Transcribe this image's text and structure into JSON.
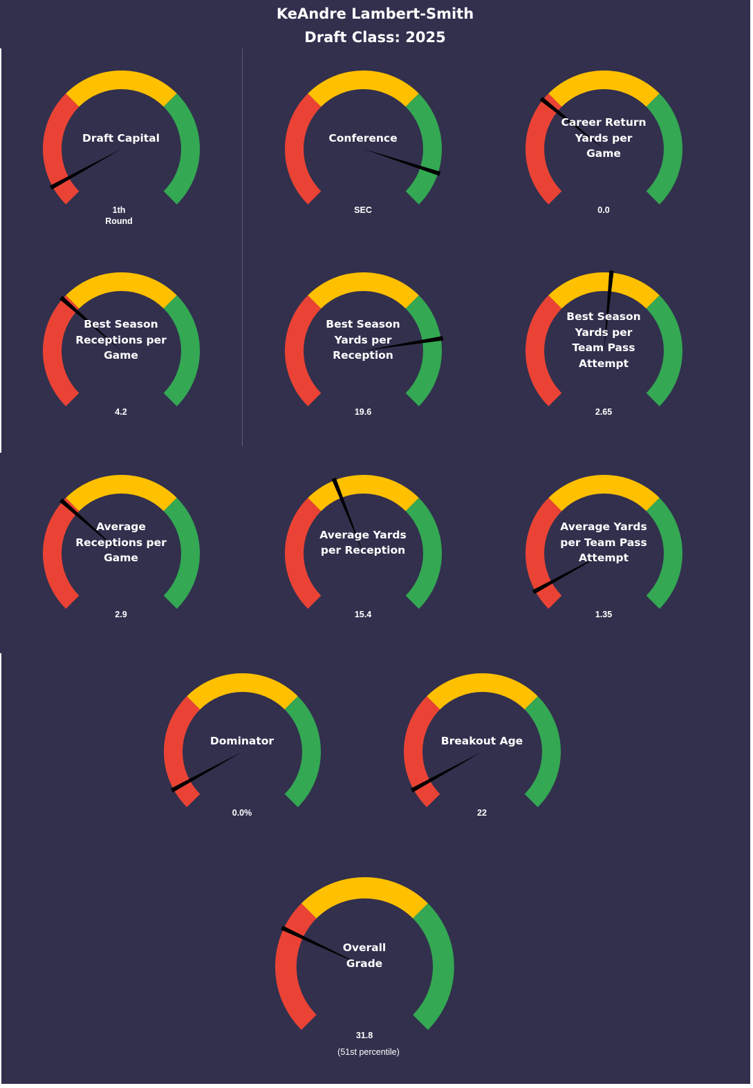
{
  "header": {
    "player_name": "KeAndre Lambert-Smith",
    "draft_class": "Draft Class: 2025"
  },
  "colors": {
    "background": "#32304d",
    "low": "#ea4335",
    "mid": "#ffc000",
    "high": "#34a853",
    "needle": "#000000",
    "text": "#ffffff"
  },
  "chart_data": [
    {
      "type": "gauge",
      "name": "draft-capital",
      "label_lines": [
        "Draft Capital"
      ],
      "value_lines": [
        "1th",
        "Round"
      ],
      "needle_pct": 6
    },
    {
      "type": "gauge",
      "name": "conference",
      "label_lines": [
        "Conference"
      ],
      "value_lines": [
        "SEC"
      ],
      "needle_pct": 90
    },
    {
      "type": "gauge",
      "name": "career-return-yards",
      "label_lines": [
        "Career Return",
        "Yards per",
        "Game"
      ],
      "value_lines": [
        "0.0"
      ],
      "needle_pct": 31
    },
    {
      "type": "gauge",
      "name": "best-season-receptions",
      "label_lines": [
        "Best Season",
        "Receptions per",
        "Game"
      ],
      "value_lines": [
        "4.2"
      ],
      "needle_pct": 32
    },
    {
      "type": "gauge",
      "name": "best-season-ypr",
      "label_lines": [
        "Best Season",
        "Yards per",
        "Reception"
      ],
      "value_lines": [
        "19.6"
      ],
      "needle_pct": 80
    },
    {
      "type": "gauge",
      "name": "best-season-ytpa",
      "label_lines": [
        "Best Season",
        "Yards per",
        "Team Pass",
        "Attempt"
      ],
      "value_lines": [
        "2.65"
      ],
      "needle_pct": 52
    },
    {
      "type": "gauge",
      "name": "average-receptions",
      "label_lines": [
        "Average",
        "Receptions per",
        "Game"
      ],
      "value_lines": [
        "2.9"
      ],
      "needle_pct": 32
    },
    {
      "type": "gauge",
      "name": "average-ypr",
      "label_lines": [
        "Average Yards",
        "per Reception"
      ],
      "value_lines": [
        "15.4"
      ],
      "needle_pct": 42
    },
    {
      "type": "gauge",
      "name": "average-ytpa",
      "label_lines": [
        "Average Yards",
        "per Team Pass",
        "Attempt"
      ],
      "value_lines": [
        "1.35"
      ],
      "needle_pct": 6
    },
    {
      "type": "gauge",
      "name": "dominator",
      "label_lines": [
        "Dominator"
      ],
      "value_lines": [
        "0.0%"
      ],
      "needle_pct": 6
    },
    {
      "type": "gauge",
      "name": "breakout-age",
      "label_lines": [
        "Breakout Age"
      ],
      "value_lines": [
        "22"
      ],
      "needle_pct": 6
    },
    {
      "type": "gauge",
      "name": "overall-grade",
      "label_lines": [
        "Overall",
        "Grade"
      ],
      "value_lines": [
        "31.8"
      ],
      "sub_text": "(51st percentile)",
      "needle_pct": 26
    }
  ]
}
